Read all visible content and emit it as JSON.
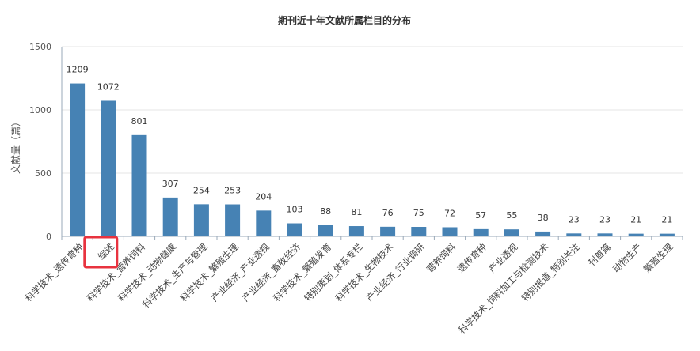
{
  "chart_data": {
    "type": "bar",
    "title": "期刊近十年文献所属栏目的分布",
    "xlabel": "",
    "ylabel": "文献量（篇）",
    "ylim": [
      0,
      1500
    ],
    "yticks": [
      0,
      500,
      1000,
      1500
    ],
    "grid": true,
    "legend": "none",
    "bar_color": "#4682b4",
    "highlight_color": "#e8333f",
    "highlighted_category": "综述",
    "categories": [
      "科学技术_遗传育种",
      "综述",
      "科学技术_营养饲料",
      "科学技术_动物健康",
      "科学技术_生产与管理",
      "科学技术_繁殖生理",
      "产业经济_产业透视",
      "产业经济_畜牧经济",
      "科学技术_繁殖发育",
      "特别策划_体系专栏",
      "科学技术_生物技术",
      "产业经济_行业调研",
      "营养饲料",
      "遗传育种",
      "产业透视",
      "科学技术_饲料加工与检测技术",
      "特别报道_特别关注",
      "刊首篇",
      "动物生产",
      "繁殖生理"
    ],
    "values": [
      1209,
      1072,
      801,
      307,
      254,
      253,
      204,
      103,
      88,
      81,
      76,
      75,
      72,
      57,
      55,
      38,
      23,
      23,
      21,
      21
    ]
  }
}
